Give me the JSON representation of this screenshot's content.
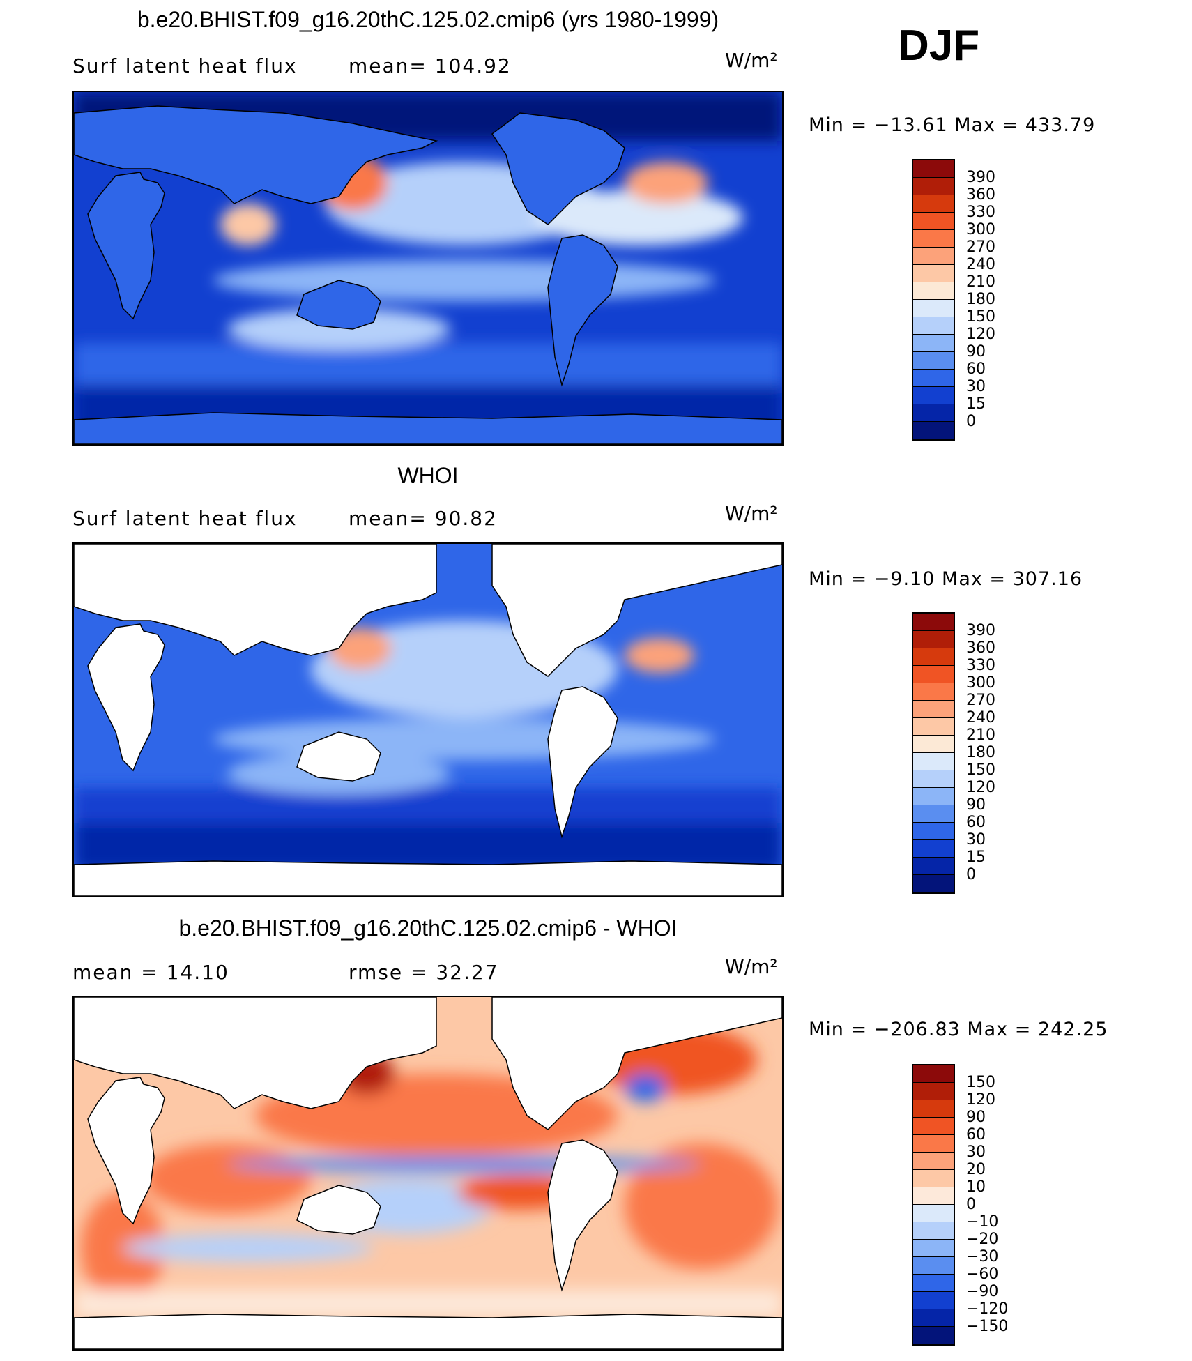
{
  "figure": {
    "season": "DJF",
    "units": "W/m²"
  },
  "panels": [
    {
      "title": "b.e20.BHIST.f09_g16.20thC.125.02.cmip6 (yrs 1980-1999)",
      "left_label": "Surf  latent  heat  flux",
      "right_label": "mean=  104.92",
      "units": "W/m²",
      "minmax": "Min  =  −13.61  Max  =  433.79",
      "land_masked": false,
      "palette": "seq",
      "colorbar_labels": [
        "390",
        "360",
        "330",
        "300",
        "270",
        "240",
        "210",
        "180",
        "150",
        "120",
        "90",
        "60",
        "30",
        "15",
        "0"
      ]
    },
    {
      "title": "WHOI",
      "left_label": "Surf  latent  heat  flux",
      "right_label": "mean=   90.82",
      "units": "W/m²",
      "minmax": "Min  =    −9.10  Max  =  307.16",
      "land_masked": true,
      "palette": "seq",
      "colorbar_labels": [
        "390",
        "360",
        "330",
        "300",
        "270",
        "240",
        "210",
        "180",
        "150",
        "120",
        "90",
        "60",
        "30",
        "15",
        "0"
      ]
    },
    {
      "title": "b.e20.BHIST.f09_g16.20thC.125.02.cmip6 - WHOI",
      "left_label": "mean  =     14.10",
      "right_label": "rmse  =     32.27",
      "units": "W/m²",
      "minmax": "Min  =  −206.83  Max  =  242.25",
      "land_masked": true,
      "palette": "div",
      "colorbar_labels": [
        "150",
        "120",
        "90",
        "60",
        "30",
        "20",
        "10",
        "0",
        "−10",
        "−20",
        "−30",
        "−60",
        "−90",
        "−120",
        "−150"
      ]
    }
  ],
  "colors": {
    "seq": [
      "#8c0a0a",
      "#b01e08",
      "#d63a0d",
      "#f05424",
      "#fa7848",
      "#fca27a",
      "#fdc8a6",
      "#fce9d6",
      "#dbe9fa",
      "#b5d0fa",
      "#8cb5f7",
      "#5a8ef0",
      "#2f66e8",
      "#1240d0",
      "#0525a8",
      "#03147a"
    ],
    "div": [
      "#8c0a0a",
      "#b01e08",
      "#d63a0d",
      "#f05424",
      "#fa7848",
      "#fca27a",
      "#fdc8a6",
      "#fde9da",
      "#dbe9fa",
      "#b5d0fa",
      "#8cb5f7",
      "#5a8ef0",
      "#2f66e8",
      "#1240d0",
      "#0525a8",
      "#03147a"
    ]
  }
}
